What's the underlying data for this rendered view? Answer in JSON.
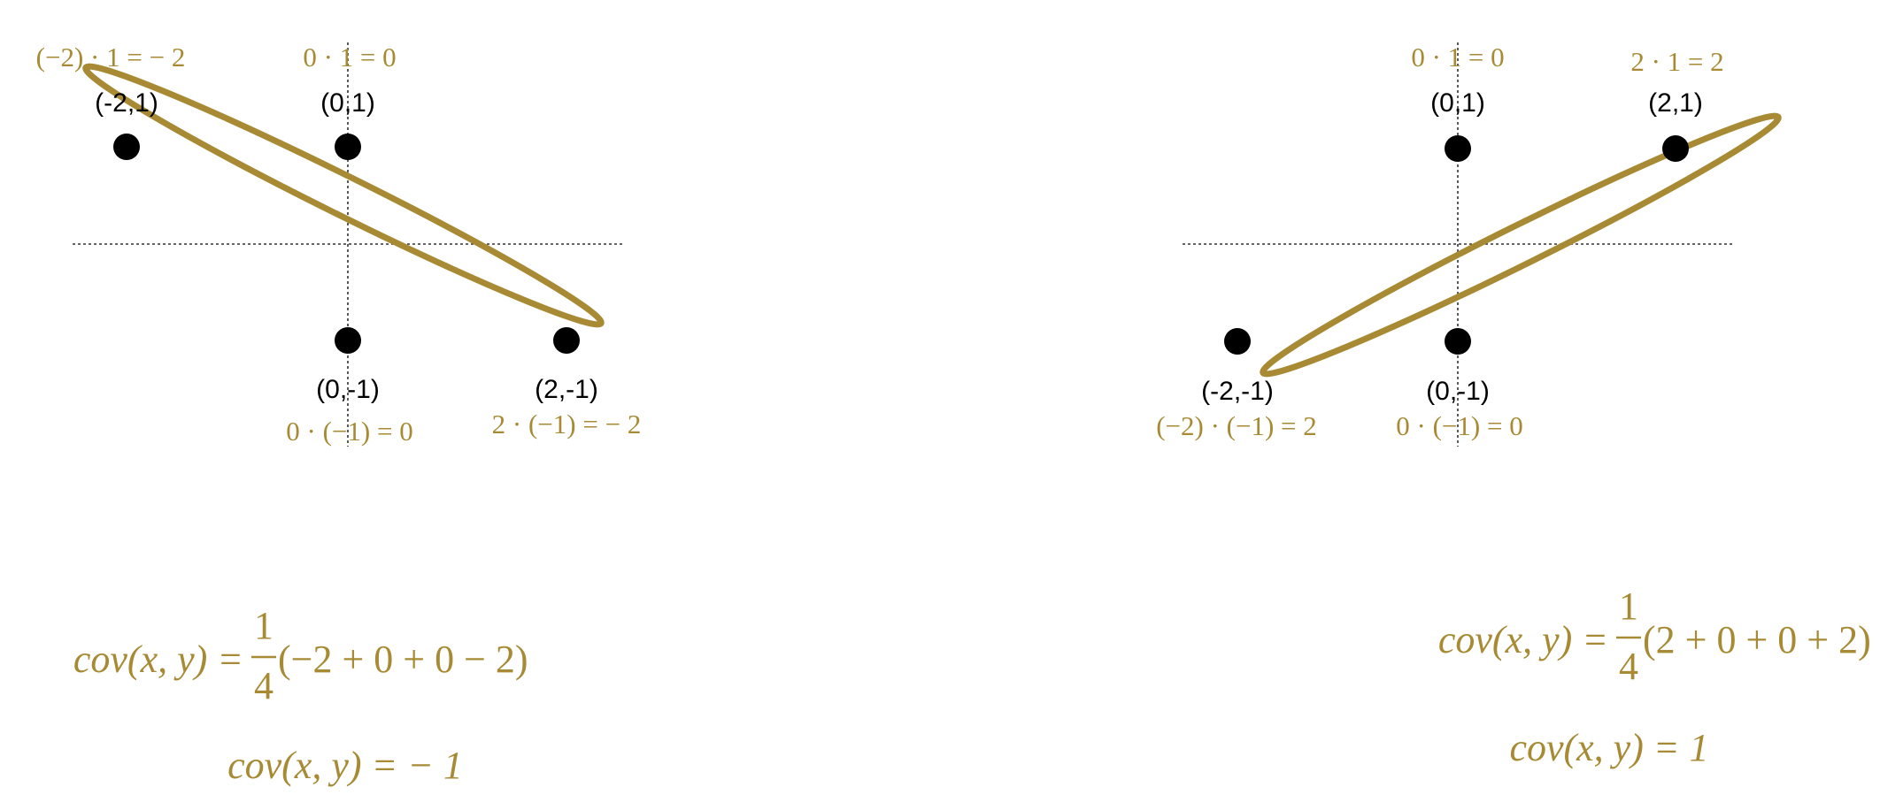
{
  "colors": {
    "accent": "#a78a33",
    "point": "#000000",
    "axis": "#333333"
  },
  "panels": [
    {
      "id": "negative",
      "points": [
        {
          "coord_label": "(-2,1)",
          "product_label": "(−2) · 1 = − 2"
        },
        {
          "coord_label": "(0,1)",
          "product_label": "0 · 1 = 0"
        },
        {
          "coord_label": "(0,-1)",
          "product_label": "0 · (−1) = 0"
        },
        {
          "coord_label": "(2,-1)",
          "product_label": "2 · (−1) = − 2"
        }
      ],
      "formula": {
        "lhs": "cov(x, y) = ",
        "numerator": "1",
        "denominator": "4",
        "rhs": "(−2 + 0 + 0 − 2)"
      },
      "result": "cov(x, y) = − 1"
    },
    {
      "id": "positive",
      "points": [
        {
          "coord_label": "(0,1)",
          "product_label": "0 · 1 = 0"
        },
        {
          "coord_label": "(2,1)",
          "product_label": "2 · 1 = 2"
        },
        {
          "coord_label": "(-2,-1)",
          "product_label": "(−2) · (−1) = 2"
        },
        {
          "coord_label": "(0,-1)",
          "product_label": "0 · (−1) = 0"
        }
      ],
      "formula": {
        "lhs": "cov(x, y) = ",
        "numerator": "1",
        "denominator": "4",
        "rhs": "(2 + 0 + 0 + 2)"
      },
      "result": "cov(x, y) = 1"
    }
  ]
}
